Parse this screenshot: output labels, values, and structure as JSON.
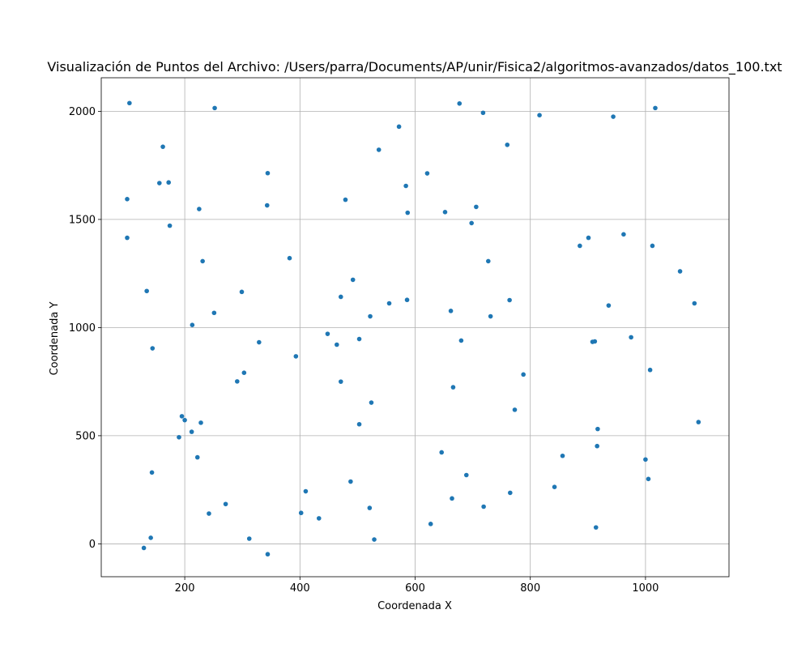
{
  "chart_data": {
    "type": "scatter",
    "title": "Visualización de Puntos del Archivo: /Users/parra/Documents/AP/unir/Fisica2/algoritmos-avanzados/datos_100.txt",
    "xlabel": "Coordenada X",
    "ylabel": "Coordenada Y",
    "xlim": [
      55,
      1145
    ],
    "ylim": [
      -152,
      2155
    ],
    "xticks": [
      200,
      400,
      600,
      800,
      1000
    ],
    "yticks": [
      0,
      500,
      1000,
      1500,
      2000
    ],
    "grid": true,
    "marker_color": "#1f77b4",
    "series": [
      {
        "points": [
          [
            104,
            2038
          ],
          [
            252,
            2015
          ],
          [
            677,
            2036
          ],
          [
            718,
            1993
          ],
          [
            816,
            1982
          ],
          [
            944,
            1975
          ],
          [
            1017,
            2015
          ],
          [
            162,
            1836
          ],
          [
            572,
            1929
          ],
          [
            537,
            1822
          ],
          [
            760,
            1845
          ],
          [
            156,
            1668
          ],
          [
            172,
            1671
          ],
          [
            344,
            1714
          ],
          [
            621,
            1713
          ],
          [
            584,
            1655
          ],
          [
            100,
            1594
          ],
          [
            479,
            1591
          ],
          [
            343,
            1565
          ],
          [
            225,
            1548
          ],
          [
            587,
            1531
          ],
          [
            652,
            1534
          ],
          [
            706,
            1558
          ],
          [
            698,
            1483
          ],
          [
            174,
            1471
          ],
          [
            100,
            1415
          ],
          [
            962,
            1431
          ],
          [
            886,
            1378
          ],
          [
            901,
            1415
          ],
          [
            1012,
            1378
          ],
          [
            382,
            1321
          ],
          [
            231,
            1307
          ],
          [
            727,
            1307
          ],
          [
            1060,
            1260
          ],
          [
            492,
            1221
          ],
          [
            134,
            1169
          ],
          [
            299,
            1165
          ],
          [
            471,
            1142
          ],
          [
            555,
            1112
          ],
          [
            586,
            1128
          ],
          [
            764,
            1127
          ],
          [
            1085,
            1112
          ],
          [
            936,
            1102
          ],
          [
            662,
            1077
          ],
          [
            251,
            1068
          ],
          [
            522,
            1052
          ],
          [
            731,
            1052
          ],
          [
            213,
            1012
          ],
          [
            448,
            971
          ],
          [
            503,
            947
          ],
          [
            975,
            955
          ],
          [
            908,
            934
          ],
          [
            912,
            936
          ],
          [
            680,
            940
          ],
          [
            329,
            932
          ],
          [
            464,
            921
          ],
          [
            144,
            904
          ],
          [
            393,
            867
          ],
          [
            303,
            791
          ],
          [
            788,
            783
          ],
          [
            1008,
            804
          ],
          [
            291,
            751
          ],
          [
            471,
            750
          ],
          [
            666,
            724
          ],
          [
            773,
            620
          ],
          [
            524,
            653
          ],
          [
            195,
            590
          ],
          [
            200,
            572
          ],
          [
            228,
            560
          ],
          [
            503,
            553
          ],
          [
            1092,
            563
          ],
          [
            917,
            531
          ],
          [
            212,
            518
          ],
          [
            190,
            493
          ],
          [
            646,
            423
          ],
          [
            916,
            452
          ],
          [
            856,
            407
          ],
          [
            222,
            400
          ],
          [
            1000,
            390
          ],
          [
            143,
            330
          ],
          [
            689,
            318
          ],
          [
            1005,
            300
          ],
          [
            488,
            288
          ],
          [
            842,
            263
          ],
          [
            410,
            243
          ],
          [
            765,
            236
          ],
          [
            664,
            210
          ],
          [
            271,
            184
          ],
          [
            719,
            172
          ],
          [
            521,
            166
          ],
          [
            402,
            143
          ],
          [
            242,
            140
          ],
          [
            433,
            118
          ],
          [
            627,
            92
          ],
          [
            914,
            76
          ],
          [
            141,
            28
          ],
          [
            312,
            24
          ],
          [
            529,
            20
          ],
          [
            129,
            -19
          ],
          [
            344,
            -48
          ]
        ]
      }
    ]
  }
}
